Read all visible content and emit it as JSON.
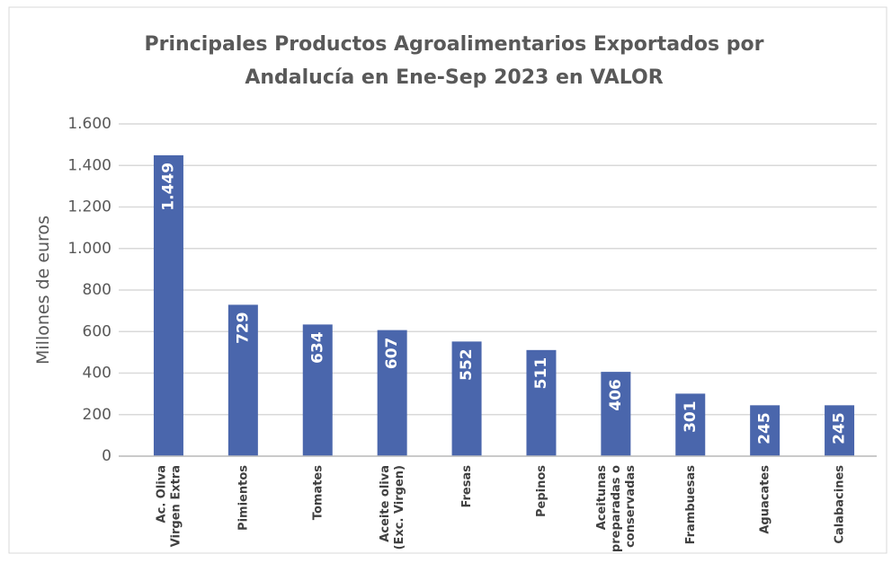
{
  "chart_data": {
    "type": "bar",
    "title": "Principales Productos Agroalimentarios Exportados por\nAndalucía en Ene-Sep 2023 en VALOR",
    "y_label": "Millones de euros",
    "categories": [
      "Ac. Oliva\nVirgen Extra",
      "Pimientos",
      "Tomates",
      "Aceite oliva\n(Exc. Virgen)",
      "Fresas",
      "Pepinos",
      "Aceitunas\npreparadas o\nconservadas",
      "Frambuesas",
      "Aguacates",
      "Calabacines"
    ],
    "values": [
      1449,
      729,
      634,
      607,
      552,
      511,
      406,
      301,
      245,
      245
    ],
    "value_labels": [
      "1.449",
      "729",
      "634",
      "607",
      "552",
      "511",
      "406",
      "301",
      "245",
      "245"
    ],
    "color": "#4a66ac",
    "ylim": [
      0,
      1600
    ],
    "yticks": [
      0,
      200,
      400,
      600,
      800,
      {
        "value": 1000,
        "label": "1.000"
      },
      {
        "value": 1200,
        "label": "1.200"
      },
      {
        "value": 1400,
        "label": "1.400"
      },
      {
        "value": 1600,
        "label": "1.600"
      }
    ],
    "grid": true
  }
}
